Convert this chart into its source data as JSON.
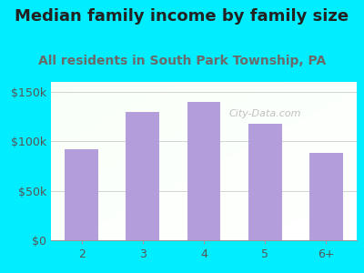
{
  "title": "Median family income by family size",
  "subtitle": "All residents in South Park Township, PA",
  "categories": [
    "2",
    "3",
    "4",
    "5",
    "6+"
  ],
  "values": [
    92000,
    130000,
    140000,
    118000,
    88000
  ],
  "bar_color": "#b39ddb",
  "background_outer": "#00eeff",
  "yticks": [
    0,
    50000,
    100000,
    150000
  ],
  "ytick_labels": [
    "$0",
    "$50k",
    "$100k",
    "$150k"
  ],
  "ylim": [
    0,
    160000
  ],
  "title_fontsize": 13,
  "subtitle_fontsize": 10,
  "tick_fontsize": 9,
  "title_color": "#222222",
  "subtitle_color": "#6a6a6a",
  "watermark": "City-Data.com"
}
